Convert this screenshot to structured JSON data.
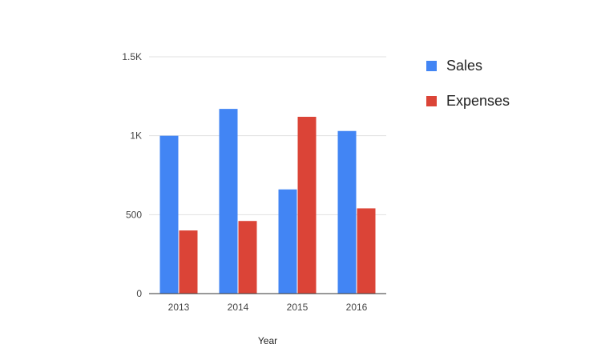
{
  "chart_data": {
    "type": "bar",
    "categories": [
      "2013",
      "2014",
      "2015",
      "2016"
    ],
    "series": [
      {
        "name": "Sales",
        "color": "#4285f4",
        "values": [
          1000,
          1170,
          660,
          1030
        ]
      },
      {
        "name": "Expenses",
        "color": "#db4437",
        "values": [
          400,
          460,
          1120,
          540
        ]
      }
    ],
    "xlabel": "Year",
    "ylabel": "",
    "ylim": [
      0,
      1500
    ],
    "yticks": [
      {
        "value": 0,
        "label": "0"
      },
      {
        "value": 500,
        "label": "500"
      },
      {
        "value": 1000,
        "label": "1K"
      },
      {
        "value": 1500,
        "label": "1.5K"
      }
    ],
    "grid": true,
    "legend_position": "right"
  }
}
